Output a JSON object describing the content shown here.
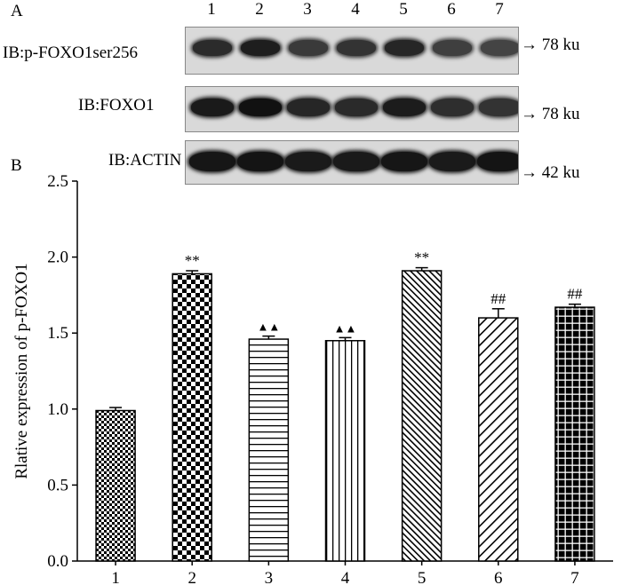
{
  "panels": {
    "a": "A",
    "b": "B"
  },
  "blot": {
    "lanes": [
      "1",
      "2",
      "3",
      "4",
      "5",
      "6",
      "7"
    ],
    "rows": [
      {
        "label": "IB:p-FOXO1ser256",
        "marker": "→ 78 ku"
      },
      {
        "label": "IB:FOXO1",
        "marker": "→ 78 ku"
      },
      {
        "label": "IB:ACTIN",
        "marker": "→ 42 ku"
      }
    ]
  },
  "chart_data": {
    "type": "bar",
    "categories": [
      "1",
      "2",
      "3",
      "4",
      "5",
      "6",
      "7"
    ],
    "values": [
      0.99,
      1.89,
      1.46,
      1.45,
      1.91,
      1.6,
      1.67
    ],
    "errors": [
      0.02,
      0.02,
      0.02,
      0.02,
      0.02,
      0.06,
      0.02
    ],
    "annotations": [
      "",
      "**",
      "▲▲",
      "▲▲",
      "**",
      "##",
      "##"
    ],
    "patterns": [
      "checker-small",
      "checker-large",
      "horizontal-lines",
      "vertical-lines",
      "diagonal-dense",
      "diagonal-wide",
      "grid-white-on-black"
    ],
    "title": "",
    "xlabel": "",
    "ylabel": "Rlative expression of p-FOXO1",
    "ylim": [
      0,
      2.5
    ],
    "yticks": [
      "0.0",
      "0.5",
      "1.0",
      "1.5",
      "2.0",
      "2.5"
    ],
    "grid": false,
    "legend": "none"
  }
}
